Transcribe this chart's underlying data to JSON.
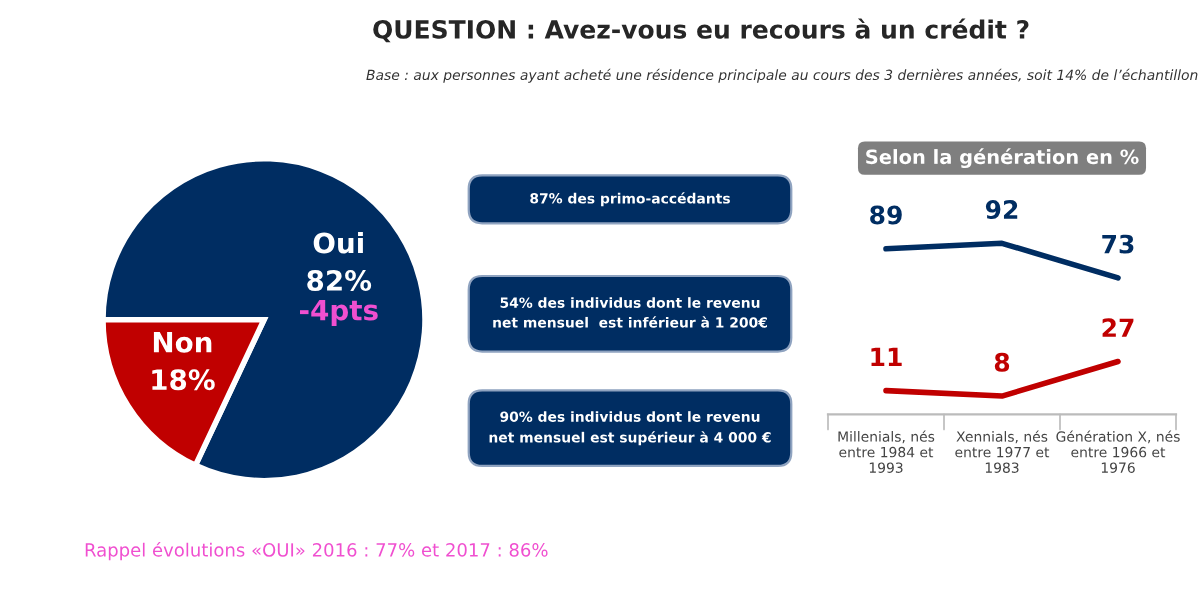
{
  "chart_data": [
    {
      "type": "pie",
      "title": "QUESTION : Avez-vous eu recours à un crédit ?",
      "subtitle": "Base : aux personnes ayant acheté une résidence principale au cours des 3 dernières années, soit 14% de l’échantillon",
      "categories": [
        "Oui",
        "Non"
      ],
      "values": [
        82,
        18
      ],
      "colors": [
        "#002d62",
        "#c00000"
      ],
      "value_labels": [
        "82%",
        "18%"
      ],
      "annotations": [
        {
          "text": "-4pts",
          "x": "Oui"
        },
        "Rappel évolutions «OUI» 2016 : 77% et 2017 : 86%"
      ]
    },
    {
      "type": "other",
      "annotations": [
        "87% des primo-accédants",
        "54% des individus dont le revenu\nnet mensuel  est inférieur à 1 200€",
        "90% des individus dont le revenu\nnet mensuel est supérieur à 4 000 €"
      ]
    },
    {
      "type": "line",
      "title": "Selon la génération en %",
      "categories": [
        "Millenials, nés\nentre 1984 et\n1993",
        "Xennials, nés\nentre 1977 et\n1983",
        "Génération X, nés\nentre 1966 et\n1976"
      ],
      "series": [
        {
          "color": "#002d62",
          "values": [
            89,
            92,
            73
          ]
        },
        {
          "color": "#c00000",
          "values": [
            11,
            8,
            27
          ]
        }
      ],
      "data_labels": true,
      "tick_labels": "x",
      "grid": false,
      "legend": false
    }
  ]
}
